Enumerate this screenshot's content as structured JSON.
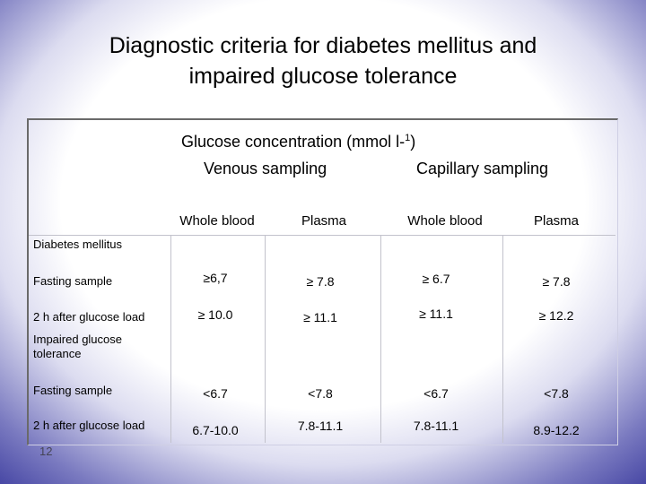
{
  "slide": {
    "title_line1": "Diagnostic criteria for diabetes mellitus and",
    "title_line2": "impaired glucose tolerance",
    "page_number": "12"
  },
  "table": {
    "group_header": "Glucose concentration (mmol l-",
    "group_header_sup": "1",
    "group_header_end": ")",
    "venous_label": "Venous sampling",
    "capillary_label": "Capillary sampling",
    "columns": [
      "Whole blood",
      "Plasma",
      "Whole blood",
      "Plasma"
    ],
    "sections": [
      {
        "label": "Diabetes mellitus",
        "rows": [
          {
            "label": "Fasting sample",
            "values": [
              "≥6,7",
              "≥ 7.8",
              "≥ 6.7",
              "≥ 7.8"
            ]
          },
          {
            "label": "2 h after glucose load",
            "values": [
              "≥ 10.0",
              "≥ 11.1",
              "≥ 11.1",
              "≥ 12.2"
            ]
          }
        ]
      },
      {
        "label": "Impaired glucose tolerance",
        "rows": [
          {
            "label": "Fasting sample",
            "values": [
              "<6.7",
              "<7.8",
              "<6.7",
              "<7.8"
            ]
          },
          {
            "label": "2 h after glucose load",
            "values": [
              "6.7-10.0",
              "7.8-11.1",
              "7.8-11.1",
              "8.9-12.2"
            ]
          }
        ]
      }
    ]
  }
}
